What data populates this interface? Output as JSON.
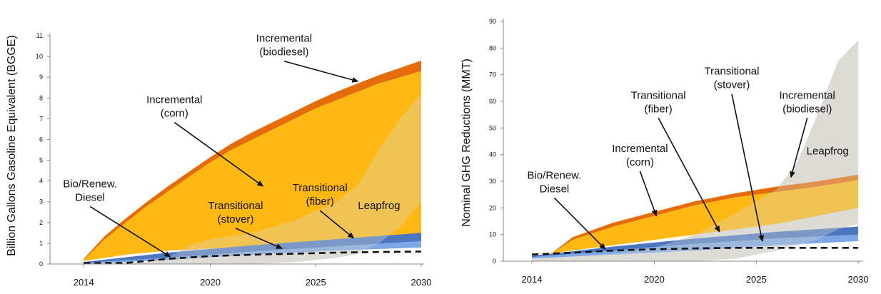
{
  "colors": {
    "incremental_corn": "#fdb813",
    "incremental_biodiesel": "#e46c0a",
    "transitional_fiber": "#4a77c0",
    "transitional_stover": "#7ba7e6",
    "bio_renew_diesel": "#111111",
    "leapfrog": "#d9d7d0"
  },
  "chart_data": [
    {
      "type": "area",
      "ylabel": "Billion Gallons Gasoline Equivalent (BGGE)",
      "xlabel": "",
      "ylim": [
        0,
        11
      ],
      "yticks": [
        "0",
        "1",
        "2",
        "3",
        "4",
        "5",
        "6",
        "7",
        "8",
        "9",
        "10",
        "11"
      ],
      "xlim": [
        2012.4,
        2030
      ],
      "xticks": [
        "2014",
        "2020",
        "2025",
        "2030"
      ],
      "grid": false,
      "bands": {
        "incremental_corn": {
          "x": [
            2014,
            2015,
            2016,
            2017,
            2018,
            2019,
            2020,
            2021,
            2022,
            2023,
            2024,
            2025,
            2026,
            2027,
            2028,
            2029,
            2030
          ],
          "lower": [
            0.15,
            0.3,
            0.45,
            0.55,
            0.65,
            0.7,
            0.75,
            0.8,
            0.85,
            0.9,
            0.95,
            1.0,
            1.05,
            1.1,
            1.15,
            1.2,
            1.25
          ],
          "upper": [
            0.2,
            1.2,
            2.0,
            2.8,
            3.5,
            4.2,
            4.9,
            5.5,
            6.0,
            6.5,
            7.0,
            7.5,
            7.9,
            8.3,
            8.7,
            9.0,
            9.3
          ]
        },
        "incremental_biodiesel": {
          "x": [
            2014,
            2015,
            2016,
            2017,
            2018,
            2019,
            2020,
            2021,
            2022,
            2023,
            2024,
            2025,
            2026,
            2027,
            2028,
            2029,
            2030
          ],
          "lower": [
            0.2,
            1.2,
            2.0,
            2.8,
            3.5,
            4.2,
            4.9,
            5.5,
            6.0,
            6.5,
            7.0,
            7.5,
            7.9,
            8.3,
            8.7,
            9.0,
            9.3
          ],
          "upper": [
            0.25,
            1.35,
            2.2,
            3.0,
            3.75,
            4.45,
            5.15,
            5.8,
            6.35,
            6.85,
            7.35,
            7.85,
            8.3,
            8.7,
            9.1,
            9.45,
            9.8
          ]
        },
        "corn_low_band": {
          "x": [
            2014,
            2016,
            2018,
            2020,
            2022,
            2024,
            2026,
            2028,
            2030
          ],
          "lower": [
            0.15,
            0.45,
            0.65,
            0.75,
            0.85,
            0.95,
            1.05,
            1.15,
            1.25
          ],
          "upper": [
            0.2,
            1.6,
            2.8,
            3.6,
            4.2,
            4.7,
            5.2,
            5.7,
            6.2
          ]
        },
        "transitional_fiber": {
          "x": [
            2014,
            2018,
            2022,
            2026,
            2030
          ],
          "lower": [
            0.05,
            0.3,
            0.6,
            0.85,
            1.1
          ],
          "upper": [
            0.1,
            0.55,
            0.9,
            1.2,
            1.5
          ]
        },
        "transitional_stover": {
          "x": [
            2014,
            2018,
            2022,
            2026,
            2030
          ],
          "lower": [
            0.0,
            0.2,
            0.45,
            0.65,
            0.8
          ],
          "upper": [
            0.05,
            0.3,
            0.6,
            0.85,
            1.1
          ]
        },
        "leapfrog": {
          "x": [
            2014,
            2017,
            2018,
            2019,
            2020,
            2022,
            2024,
            2026,
            2027,
            2028,
            2029,
            2030
          ],
          "lower": [
            0,
            0,
            0,
            0,
            0,
            0,
            0.1,
            0.3,
            0.5,
            1.0,
            1.8,
            3.0
          ],
          "upper": [
            0,
            0.1,
            0.3,
            0.9,
            1.2,
            1.5,
            2.1,
            3.0,
            3.8,
            5.5,
            7.0,
            8.2
          ]
        }
      },
      "line_bio_renew_diesel": {
        "x": [
          2014,
          2016,
          2018,
          2020,
          2022,
          2024,
          2026,
          2028,
          2030
        ],
        "y": [
          0.05,
          0.05,
          0.25,
          0.38,
          0.45,
          0.5,
          0.55,
          0.58,
          0.6
        ]
      },
      "annotations": [
        {
          "lines": [
            "Incremental",
            "(biodiesel)"
          ],
          "x": 2023.5,
          "y": 10.7,
          "arrow_to": [
            2027,
            8.8
          ]
        },
        {
          "lines": [
            "Incremental",
            "(corn)"
          ],
          "x": 2018.3,
          "y": 7.75,
          "arrow_to": [
            2022.5,
            3.75
          ]
        },
        {
          "lines": [
            "Bio/Renew.",
            "Diesel"
          ],
          "x": 2014.3,
          "y": 3.7,
          "arrow_to": [
            2018.1,
            0.35
          ]
        },
        {
          "lines": [
            "Transitional",
            "(stover)"
          ],
          "x": 2021.2,
          "y": 2.65,
          "arrow_to": [
            2023.4,
            0.75
          ]
        },
        {
          "lines": [
            "Transitional",
            "(fiber)"
          ],
          "x": 2025.2,
          "y": 3.5,
          "arrow_to": [
            2026.8,
            1.25
          ]
        },
        {
          "lines": [
            "Leapfrog"
          ],
          "x": 2028.0,
          "y": 2.65
        }
      ]
    },
    {
      "type": "area",
      "ylabel": "Nominal GHG Reductions (MMT)",
      "xlabel": "",
      "ylim": [
        0,
        90
      ],
      "yticks": [
        "0",
        "10",
        "20",
        "30",
        "40",
        "50",
        "60",
        "70",
        "80",
        "90"
      ],
      "xlim": [
        2012.6,
        2030.1
      ],
      "xticks": [
        "2014",
        "2020",
        "2025",
        "2030"
      ],
      "grid": false,
      "bands": {
        "incremental_corn": {
          "x": [
            2014,
            2015,
            2016,
            2018,
            2020,
            2022,
            2024,
            2026,
            2028,
            2030
          ],
          "lower": [
            2.5,
            3,
            4,
            6,
            8,
            10,
            12,
            14,
            17,
            20
          ],
          "upper": [
            2.5,
            3,
            8,
            13,
            17,
            21,
            24,
            26,
            28,
            30.5
          ]
        },
        "incremental_biodiesel": {
          "x": [
            2014,
            2015,
            2016,
            2018,
            2020,
            2022,
            2024,
            2026,
            2028,
            2030
          ],
          "lower": [
            2.5,
            3,
            8,
            13,
            17,
            21,
            24,
            26,
            28,
            30.5
          ],
          "upper": [
            2.5,
            3.2,
            9,
            14.5,
            18.5,
            22.5,
            25.5,
            28,
            30,
            32.5
          ]
        },
        "transitional_fiber": {
          "x": [
            2014,
            2018,
            2022,
            2026,
            2030
          ],
          "lower": [
            1.5,
            4,
            6.5,
            8.5,
            10
          ],
          "upper": [
            2,
            5.5,
            8.5,
            11,
            13
          ]
        },
        "transitional_stover": {
          "x": [
            2014,
            2018,
            2022,
            2026,
            2030
          ],
          "lower": [
            1,
            2.5,
            4,
            6,
            7.5
          ],
          "upper": [
            1.5,
            4,
            6.5,
            8.5,
            10
          ]
        },
        "leapfrog": {
          "x": [
            2014,
            2016,
            2018,
            2020,
            2022,
            2024,
            2026,
            2027,
            2028,
            2029,
            2030
          ],
          "lower": [
            0,
            0,
            0,
            0,
            0,
            1,
            4,
            6,
            8,
            12,
            14
          ],
          "upper": [
            1,
            1.8,
            3,
            5,
            10,
            18,
            27,
            37,
            55,
            75,
            83
          ]
        }
      },
      "line_bio_renew_diesel": {
        "x": [
          2014,
          2016,
          2018,
          2020,
          2022,
          2024,
          2026,
          2028,
          2030
        ],
        "y": [
          2.5,
          3.2,
          4,
          4.5,
          4.8,
          5,
          5,
          5,
          5
        ]
      },
      "annotations": [
        {
          "lines": [
            "Transitional",
            "(stover)"
          ],
          "x": 2023.8,
          "y": 70,
          "arrow_to": [
            2025.3,
            7.5
          ]
        },
        {
          "lines": [
            "Transitional",
            "(fiber)"
          ],
          "x": 2020.2,
          "y": 61,
          "arrow_to": [
            2023.2,
            11
          ]
        },
        {
          "lines": [
            "Incremental",
            "(biodiesel)"
          ],
          "x": 2027.5,
          "y": 61,
          "arrow_to": [
            2026.7,
            31.5
          ]
        },
        {
          "lines": [
            "Incremental",
            "(corn)"
          ],
          "x": 2019.3,
          "y": 41,
          "arrow_to": [
            2020.1,
            17
          ]
        },
        {
          "lines": [
            "Bio/Renew.",
            "Diesel"
          ],
          "x": 2015.1,
          "y": 31,
          "arrow_to": [
            2017.6,
            4.5
          ]
        },
        {
          "lines": [
            "Leapfrog"
          ],
          "x": 2028.5,
          "y": 40
        }
      ]
    }
  ]
}
